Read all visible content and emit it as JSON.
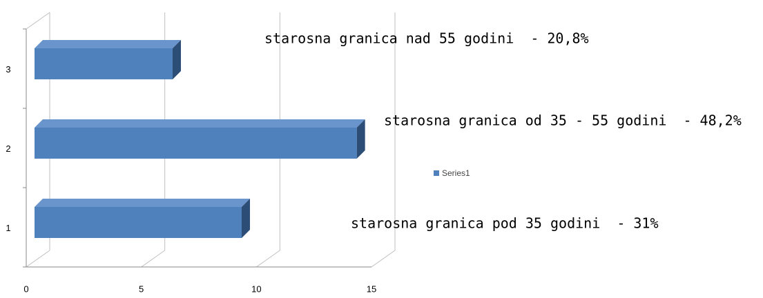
{
  "chart_data": {
    "type": "bar3d_horizontal",
    "categories": [
      "1",
      "2",
      "3"
    ],
    "series": [
      {
        "name": "Series1",
        "color": "#4f81bd",
        "values": [
          9,
          14,
          6
        ]
      }
    ],
    "xlim": [
      0,
      15
    ],
    "xticks": [
      0,
      5,
      10,
      15
    ],
    "grid": true,
    "legend": "right",
    "annotations": [
      "starosna granica pod 35 godini  - 31%",
      "starosna granica od 35 - 55 godini  - 48,2%",
      "starosna granica nad 55 godini  - 20,8%"
    ]
  }
}
